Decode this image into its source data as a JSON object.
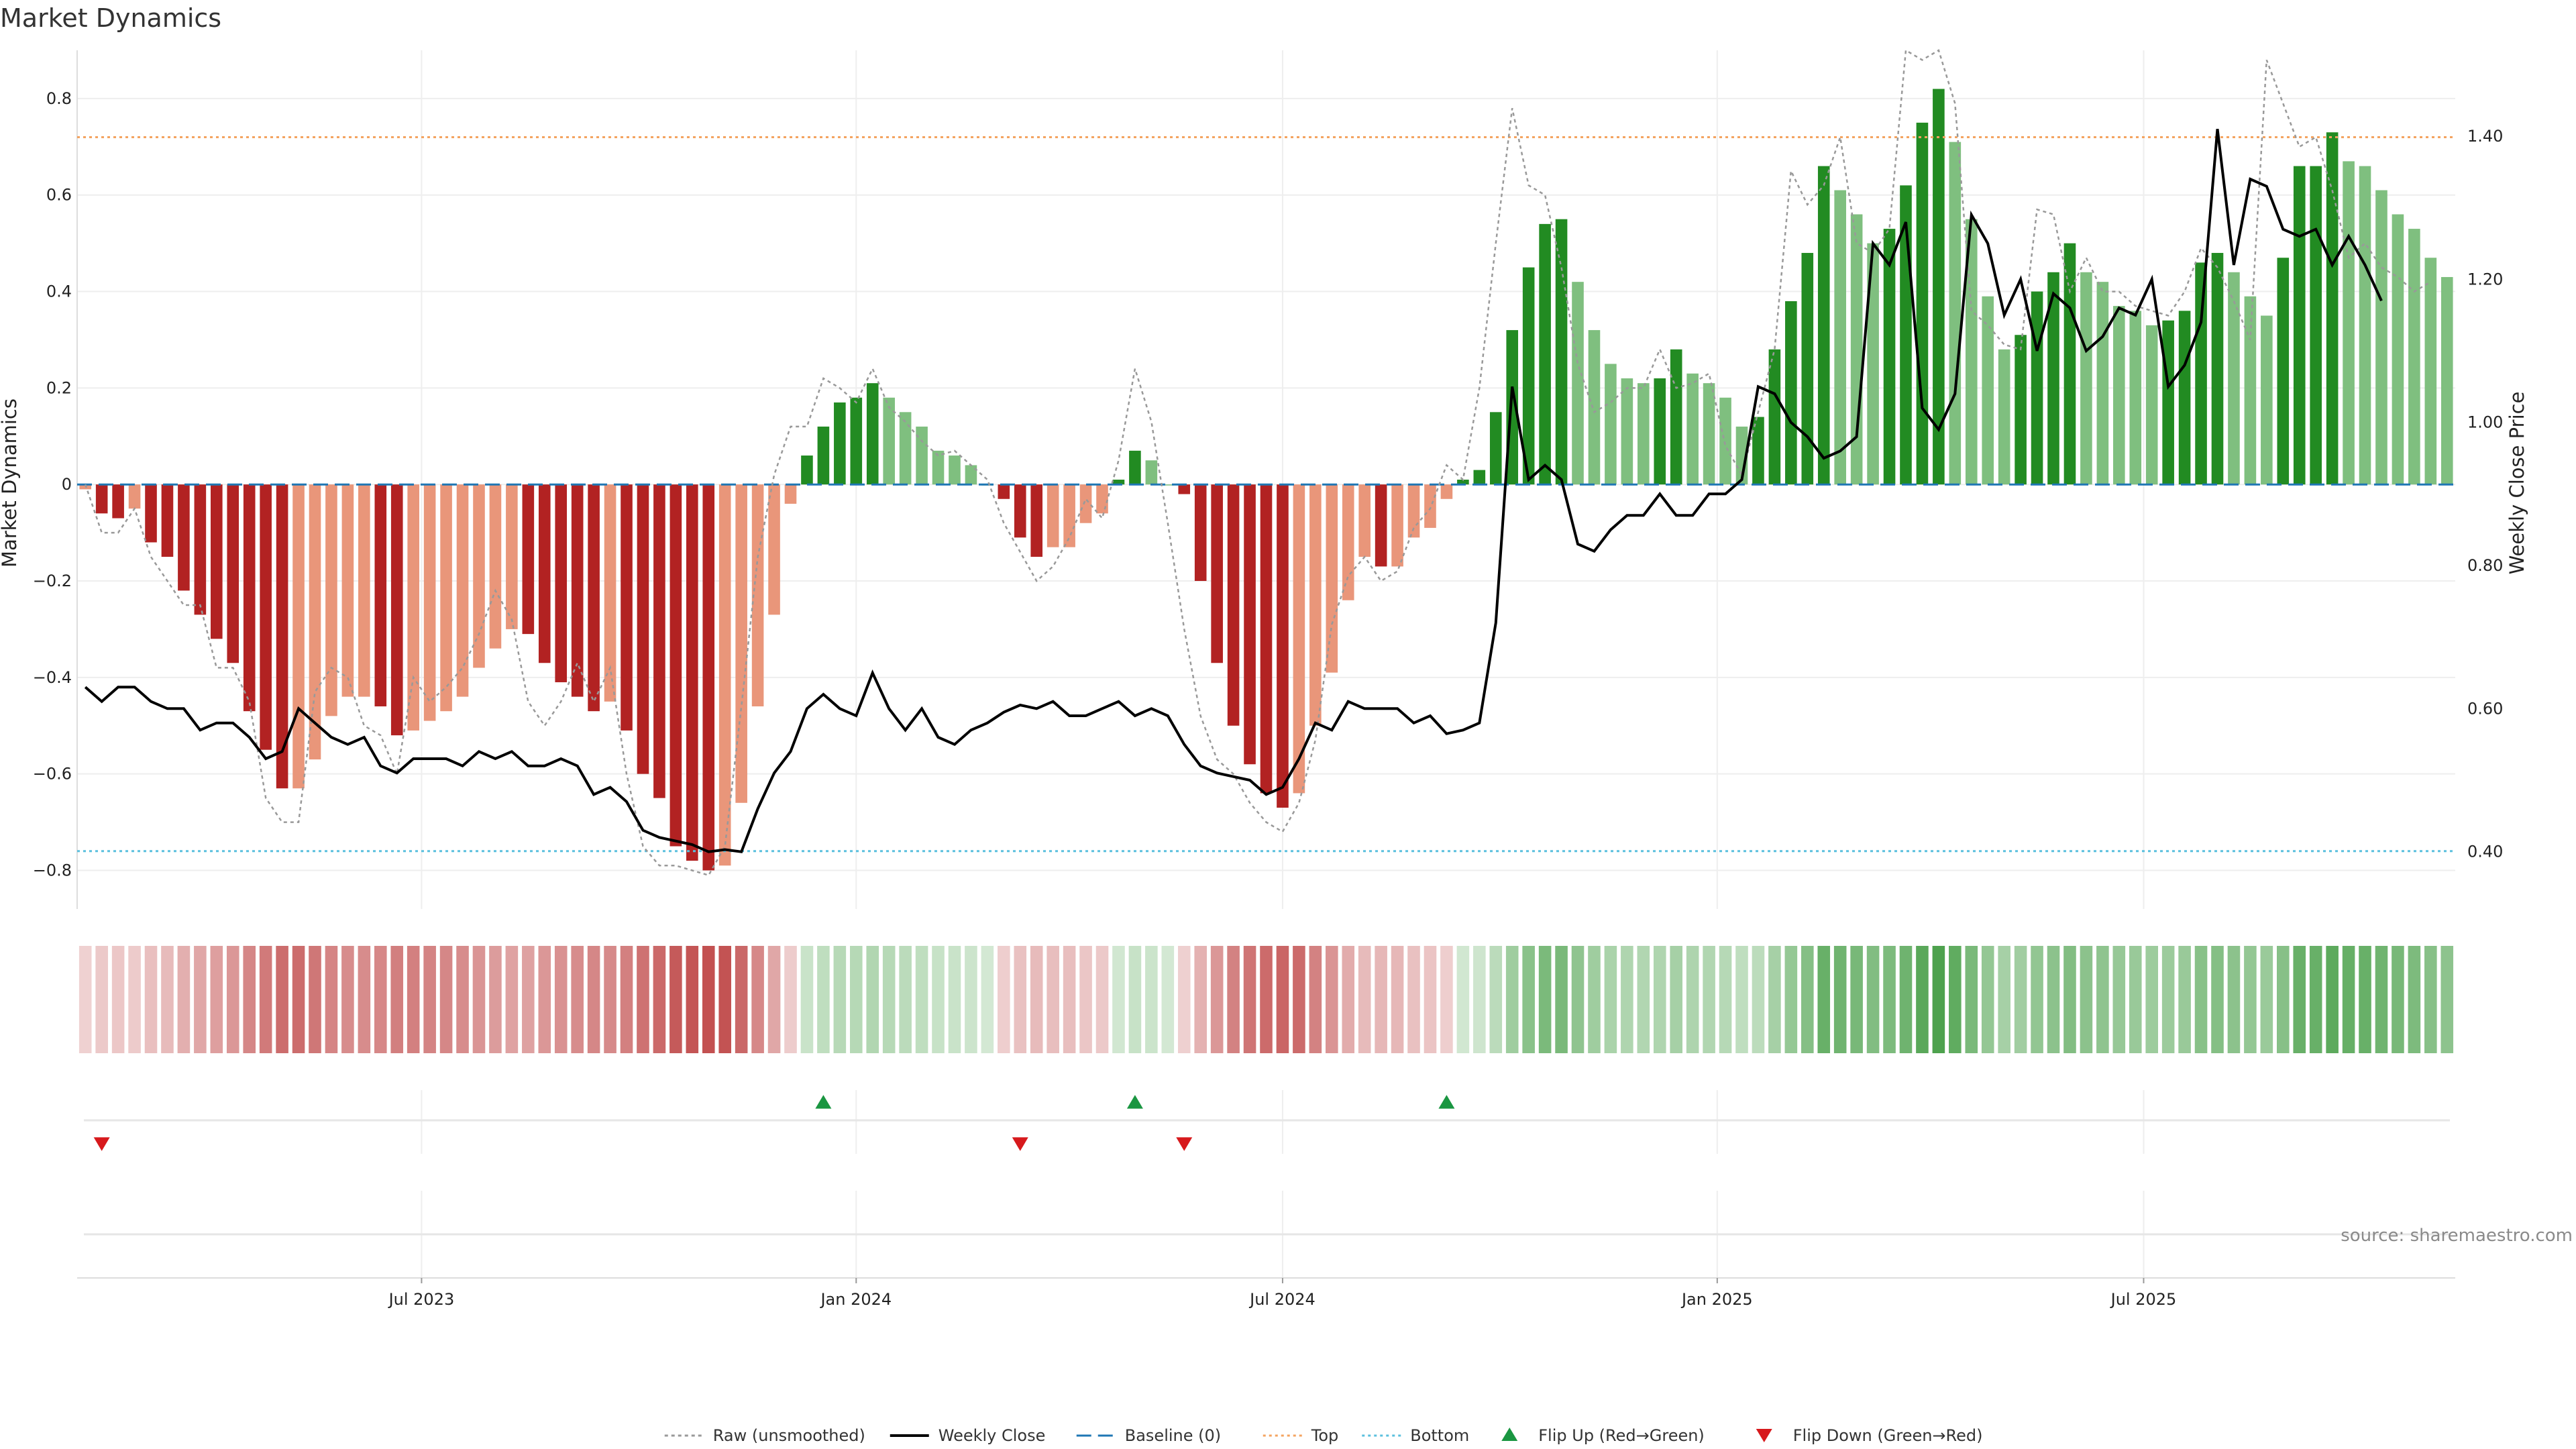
{
  "chart_data": {
    "type": "bar",
    "title": "Market Dynamics",
    "ylabel": "Market Dynamics",
    "y2label": "Weekly Close Price",
    "ylim": [
      -0.88,
      0.9
    ],
    "y2lim": [
      0.32,
      1.52
    ],
    "yticks": [
      0.8,
      0.6,
      0.4,
      0.2,
      0,
      -0.2,
      -0.4,
      -0.6,
      -0.8
    ],
    "ytick_labels": [
      "0.8",
      "0.6",
      "0.4",
      "0.2",
      "0",
      "−0.2",
      "−0.4",
      "−0.6",
      "−0.8"
    ],
    "y2ticks": [
      1.4,
      1.2,
      1.0,
      0.8,
      0.6,
      0.4
    ],
    "y2tick_labels": [
      "1.40",
      "1.20",
      "1.00",
      "0.80",
      "0.60",
      "0.40"
    ],
    "xticks": [
      {
        "week": 20.5,
        "label": "Jul 2023"
      },
      {
        "week": 47,
        "label": "Jan 2024"
      },
      {
        "week": 73,
        "label": "Jul 2024"
      },
      {
        "week": 99.5,
        "label": "Jan 2025"
      },
      {
        "week": 125.5,
        "label": "Jul 2025"
      }
    ],
    "x_range": [
      -0.5,
      144.5
    ],
    "grid": true,
    "top_level": 0.72,
    "bottom_level": -0.76,
    "baseline": 0,
    "dynamics": [
      -0.01,
      -0.06,
      -0.07,
      -0.05,
      -0.12,
      -0.15,
      -0.22,
      -0.27,
      -0.32,
      -0.37,
      -0.47,
      -0.55,
      -0.63,
      -0.63,
      -0.57,
      -0.48,
      -0.44,
      -0.44,
      -0.46,
      -0.52,
      -0.51,
      -0.49,
      -0.47,
      -0.44,
      -0.38,
      -0.34,
      -0.3,
      -0.31,
      -0.37,
      -0.41,
      -0.44,
      -0.47,
      -0.45,
      -0.51,
      -0.6,
      -0.65,
      -0.75,
      -0.78,
      -0.8,
      -0.79,
      -0.66,
      -0.46,
      -0.27,
      -0.04,
      0.06,
      0.12,
      0.17,
      0.18,
      0.21,
      0.18,
      0.15,
      0.12,
      0.07,
      0.06,
      0.04,
      0,
      -0.03,
      -0.11,
      -0.15,
      -0.13,
      -0.13,
      -0.08,
      -0.06,
      0.01,
      0.07,
      0.05,
      0,
      -0.02,
      -0.2,
      -0.37,
      -0.5,
      -0.58,
      -0.64,
      -0.67,
      -0.64,
      -0.5,
      -0.39,
      -0.24,
      -0.15,
      -0.17,
      -0.17,
      -0.11,
      -0.09,
      -0.03,
      0.01,
      0.03,
      0.15,
      0.32,
      0.45,
      0.54,
      0.55,
      0.42,
      0.32,
      0.25,
      0.22,
      0.21,
      0.22,
      0.28,
      0.23,
      0.21,
      0.18,
      0.12,
      0.14,
      0.28,
      0.38,
      0.48,
      0.66,
      0.61,
      0.56,
      0.5,
      0.53,
      0.62,
      0.75,
      0.82,
      0.71,
      0.55,
      0.39,
      0.28,
      0.31,
      0.4,
      0.44,
      0.5,
      0.44,
      0.42,
      0.37,
      0.36,
      0.33,
      0.34,
      0.36,
      0.46,
      0.48,
      0.44,
      0.39,
      0.35,
      0.47,
      0.66,
      0.66,
      0.73,
      0.67,
      0.66,
      0.61,
      0.56,
      0.53,
      0.47,
      0.43
    ],
    "raw": [
      0.0,
      -0.1,
      -0.1,
      -0.05,
      -0.15,
      -0.2,
      -0.25,
      -0.25,
      -0.38,
      -0.38,
      -0.45,
      -0.65,
      -0.7,
      -0.7,
      -0.43,
      -0.38,
      -0.4,
      -0.5,
      -0.52,
      -0.6,
      -0.4,
      -0.45,
      -0.42,
      -0.38,
      -0.31,
      -0.22,
      -0.28,
      -0.45,
      -0.5,
      -0.45,
      -0.37,
      -0.45,
      -0.38,
      -0.6,
      -0.75,
      -0.79,
      -0.79,
      -0.8,
      -0.81,
      -0.75,
      -0.46,
      -0.15,
      0.02,
      0.12,
      0.12,
      0.22,
      0.2,
      0.17,
      0.24,
      0.16,
      0.13,
      0.09,
      0.06,
      0.07,
      0.04,
      0.01,
      -0.08,
      -0.14,
      -0.2,
      -0.17,
      -0.11,
      -0.03,
      -0.07,
      0.05,
      0.24,
      0.13,
      -0.08,
      -0.3,
      -0.48,
      -0.57,
      -0.6,
      -0.66,
      -0.7,
      -0.72,
      -0.66,
      -0.53,
      -0.29,
      -0.19,
      -0.15,
      -0.2,
      -0.18,
      -0.09,
      -0.05,
      0.04,
      0.01,
      0.2,
      0.5,
      0.78,
      0.62,
      0.6,
      0.45,
      0.25,
      0.15,
      0.17,
      0.2,
      0.2,
      0.28,
      0.2,
      0.21,
      0.23,
      0.08,
      0.02,
      0.15,
      0.28,
      0.65,
      0.58,
      0.62,
      0.72,
      0.5,
      0.48,
      0.53,
      0.9,
      0.88,
      0.9,
      0.79,
      0.36,
      0.33,
      0.29,
      0.28,
      0.57,
      0.56,
      0.4,
      0.47,
      0.4,
      0.4,
      0.37,
      0.36,
      0.35,
      0.4,
      0.49,
      0.45,
      0.38,
      0.3,
      0.88,
      0.79,
      0.7,
      0.72,
      0.61,
      0.47,
      0.5,
      0.45,
      0.43,
      0.4,
      0.42
    ],
    "close": [
      0.63,
      0.61,
      0.63,
      0.63,
      0.61,
      0.6,
      0.6,
      0.57,
      0.58,
      0.58,
      0.56,
      0.53,
      0.54,
      0.6,
      0.58,
      0.56,
      0.55,
      0.56,
      0.52,
      0.51,
      0.53,
      0.53,
      0.53,
      0.52,
      0.54,
      0.53,
      0.54,
      0.52,
      0.52,
      0.53,
      0.52,
      0.48,
      0.49,
      0.47,
      0.43,
      0.42,
      0.415,
      0.41,
      0.4,
      0.403,
      0.4,
      0.46,
      0.51,
      0.54,
      0.6,
      0.62,
      0.6,
      0.59,
      0.65,
      0.6,
      0.57,
      0.6,
      0.56,
      0.55,
      0.57,
      0.58,
      0.595,
      0.605,
      0.6,
      0.61,
      0.59,
      0.59,
      0.6,
      0.61,
      0.59,
      0.6,
      0.59,
      0.55,
      0.52,
      0.51,
      0.505,
      0.5,
      0.48,
      0.49,
      0.53,
      0.58,
      0.57,
      0.61,
      0.6,
      0.6,
      0.6,
      0.58,
      0.59,
      0.565,
      0.57,
      0.58,
      0.72,
      1.05,
      0.92,
      0.94,
      0.92,
      0.83,
      0.82,
      0.85,
      0.87,
      0.87,
      0.9,
      0.87,
      0.87,
      0.9,
      0.9,
      0.92,
      1.05,
      1.04,
      1.0,
      0.98,
      0.95,
      0.96,
      0.98,
      1.25,
      1.22,
      1.28,
      1.02,
      0.99,
      1.04,
      1.29,
      1.25,
      1.15,
      1.2,
      1.1,
      1.18,
      1.16,
      1.1,
      1.12,
      1.16,
      1.15,
      1.2,
      1.05,
      1.08,
      1.14,
      1.41,
      1.22,
      1.34,
      1.33,
      1.27,
      1.26,
      1.27,
      1.22,
      1.26,
      1.22,
      1.17
    ],
    "flip_up_weeks": [
      45,
      64,
      83
    ],
    "flip_down_weeks": [
      1,
      57,
      67
    ],
    "source_text": "source: sharemaestro.com",
    "legend": {
      "placement": "bottom-center",
      "entries": [
        {
          "label": "Raw (unsmoothed)",
          "style": "dotted-gray"
        },
        {
          "label": "Weekly Close",
          "style": "solid-black"
        },
        {
          "label": "Baseline (0)",
          "style": "dashed-blue"
        },
        {
          "label": "Top",
          "style": "dotted-orange"
        },
        {
          "label": "Bottom",
          "style": "dotted-cyan"
        },
        {
          "label": "Flip Up (Red→Green)",
          "style": "triangle-up-green"
        },
        {
          "label": "Flip Down (Green→Red)",
          "style": "triangle-down-red"
        }
      ]
    },
    "colors": {
      "strong_green": "#228b22",
      "light_green": "#7fbf7f",
      "strong_red": "#b22222",
      "light_red": "#e9967a",
      "raw_line": "#999999",
      "close_line": "#000000",
      "baseline": "#1f77b4",
      "top": "#f4a460",
      "bottom": "#5bc0de",
      "flip_up": "#1a9641",
      "flip_down": "#d7191c"
    }
  }
}
